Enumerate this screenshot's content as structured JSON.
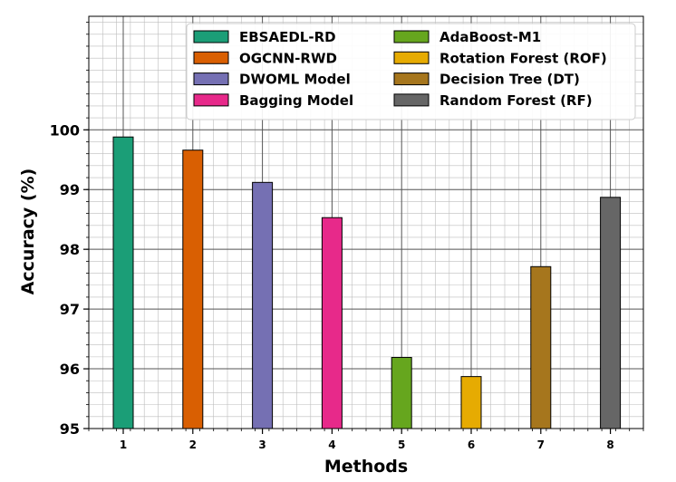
{
  "chart_data": {
    "type": "bar",
    "title": "",
    "xlabel": "Methods",
    "ylabel": "Accuracy (%)",
    "categories": [
      "1",
      "2",
      "3",
      "4",
      "5",
      "6",
      "7",
      "8"
    ],
    "series": [
      {
        "name": "EBSAEDL-RD",
        "value": 99.88,
        "color": "#1b9e77"
      },
      {
        "name": "OGCNN-RWD",
        "value": 99.66,
        "color": "#d95f02"
      },
      {
        "name": "DWOML Model",
        "value": 99.12,
        "color": "#7570b3"
      },
      {
        "name": "Bagging Model",
        "value": 98.53,
        "color": "#e7298a"
      },
      {
        "name": "AdaBoost-M1",
        "value": 96.19,
        "color": "#66a61e"
      },
      {
        "name": "Rotation Forest (ROF)",
        "value": 95.87,
        "color": "#e6ab02"
      },
      {
        "name": "Decision Tree (DT)",
        "value": 97.71,
        "color": "#a6761d"
      },
      {
        "name": "Random Forest (RF)",
        "value": 98.87,
        "color": "#666666"
      }
    ],
    "ylim": [
      95,
      101.9
    ],
    "yticks": [
      "95",
      "96",
      "97",
      "98",
      "99",
      "100"
    ],
    "grid": true,
    "legend_position": "top-right"
  }
}
